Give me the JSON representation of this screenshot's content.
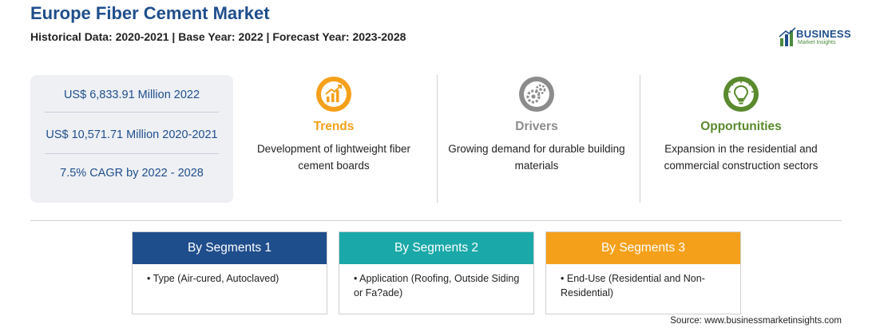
{
  "header": {
    "title": "Europe Fiber Cement Market",
    "subtitle": "Historical Data: 2020-2021 | Base Year: 2022 | Forecast Year: 2023-2028"
  },
  "logo": {
    "word": "BUSINESS",
    "sub": "Market Insights"
  },
  "stats": [
    "US$ 6,833.91 Million 2022",
    "US$ 10,571.71 Million 2020-2021",
    "7.5% CAGR by 2022 - 2028"
  ],
  "cards": [
    {
      "title": "Trends",
      "text": "Development of lightweight fiber cement boards",
      "icon": "trend-chart-icon",
      "color": "#f5a01a"
    },
    {
      "title": "Drivers",
      "text": "Growing demand for durable building materials",
      "icon": "gears-icon",
      "color": "#8c8c8c"
    },
    {
      "title": "Opportunities",
      "text": "Expansion in the residential and commercial construction sectors",
      "icon": "lightbulb-icon",
      "color": "#5a8a2e"
    }
  ],
  "segments": [
    {
      "title": "By Segments 1",
      "item": "Type (Air-cured, Autoclaved)",
      "color": "#1f4e8c"
    },
    {
      "title": "By Segments 2",
      "item": "Application (Roofing, Outside Siding or Fa?ade)",
      "color": "#1aa8a8"
    },
    {
      "title": "By Segments 3",
      "item": "End-Use (Residential and Non-Residential)",
      "color": "#f5a01a"
    }
  ],
  "source": "Source: www.businessmarketinsights.com"
}
